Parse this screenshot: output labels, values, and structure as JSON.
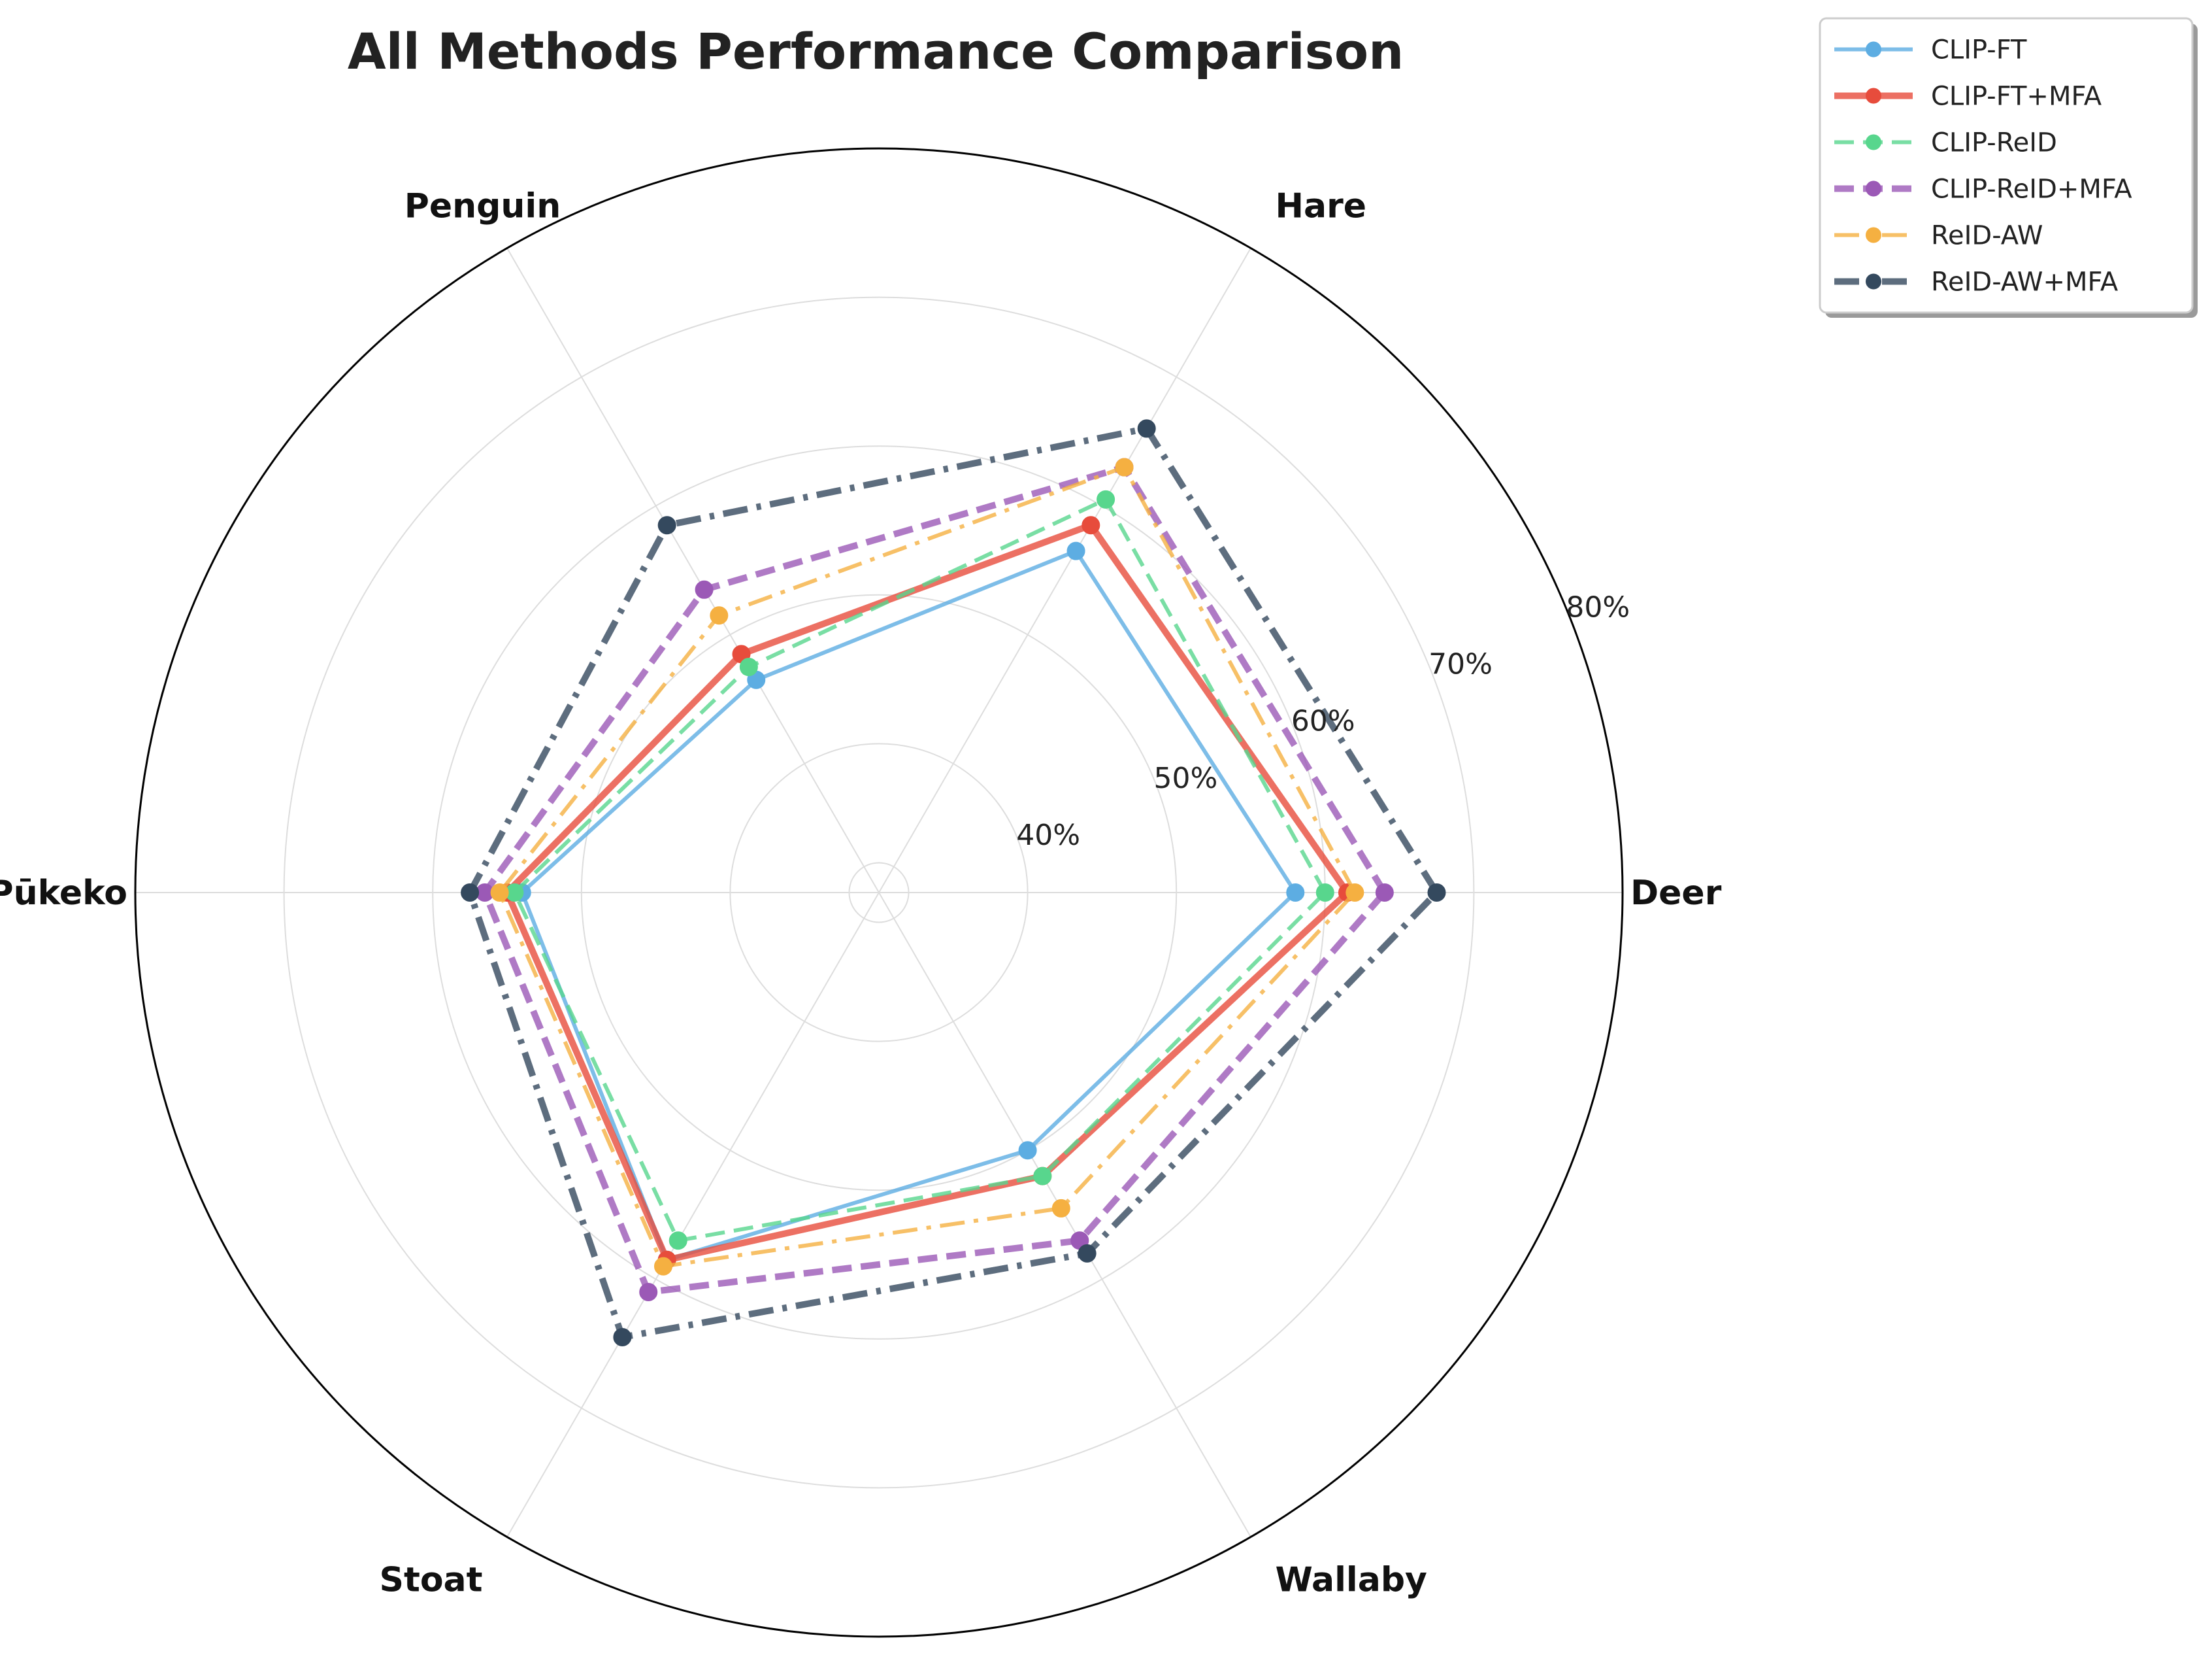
{
  "chart_data": {
    "type": "radar",
    "title": "All Methods Performance Comparison",
    "categories": [
      "Deer",
      "Hare",
      "Penguin",
      "Pūkeko",
      "Stoat",
      "Wallaby"
    ],
    "rlim": [
      30,
      80
    ],
    "radial_ticks": [
      40,
      50,
      60,
      70,
      80
    ],
    "radial_tick_labels": [
      "40%",
      "50%",
      "60%",
      "70%",
      "80%"
    ],
    "grid": true,
    "legend_position": "top-right",
    "series": [
      {
        "name": "CLIP-FT",
        "color": "#5DADE2",
        "line_style": "solid",
        "values": [
          58.0,
          56.5,
          46.5,
          54.0,
          58.5,
          50.0
        ]
      },
      {
        "name": "CLIP-FT+MFA",
        "color": "#E74C3C",
        "line_style": "solid",
        "values": [
          61.5,
          58.5,
          48.5,
          55.0,
          58.5,
          52.0
        ]
      },
      {
        "name": "CLIP-ReID",
        "color": "#58D68D",
        "line_style": "dashed",
        "values": [
          60.0,
          60.5,
          47.5,
          54.5,
          57.0,
          52.0
        ]
      },
      {
        "name": "CLIP-ReID+MFA",
        "color": "#9B59B6",
        "line_style": "dashed",
        "values": [
          64.0,
          63.0,
          53.5,
          56.5,
          61.0,
          57.0
        ]
      },
      {
        "name": "ReID-AW",
        "color": "#F5B041",
        "line_style": "dashdot",
        "values": [
          62.0,
          63.0,
          51.5,
          55.5,
          59.0,
          54.5
        ]
      },
      {
        "name": "ReID-AW+MFA",
        "color": "#34495E",
        "line_style": "dashdot",
        "values": [
          67.5,
          66.0,
          58.5,
          57.5,
          64.5,
          58.0
        ]
      }
    ]
  }
}
